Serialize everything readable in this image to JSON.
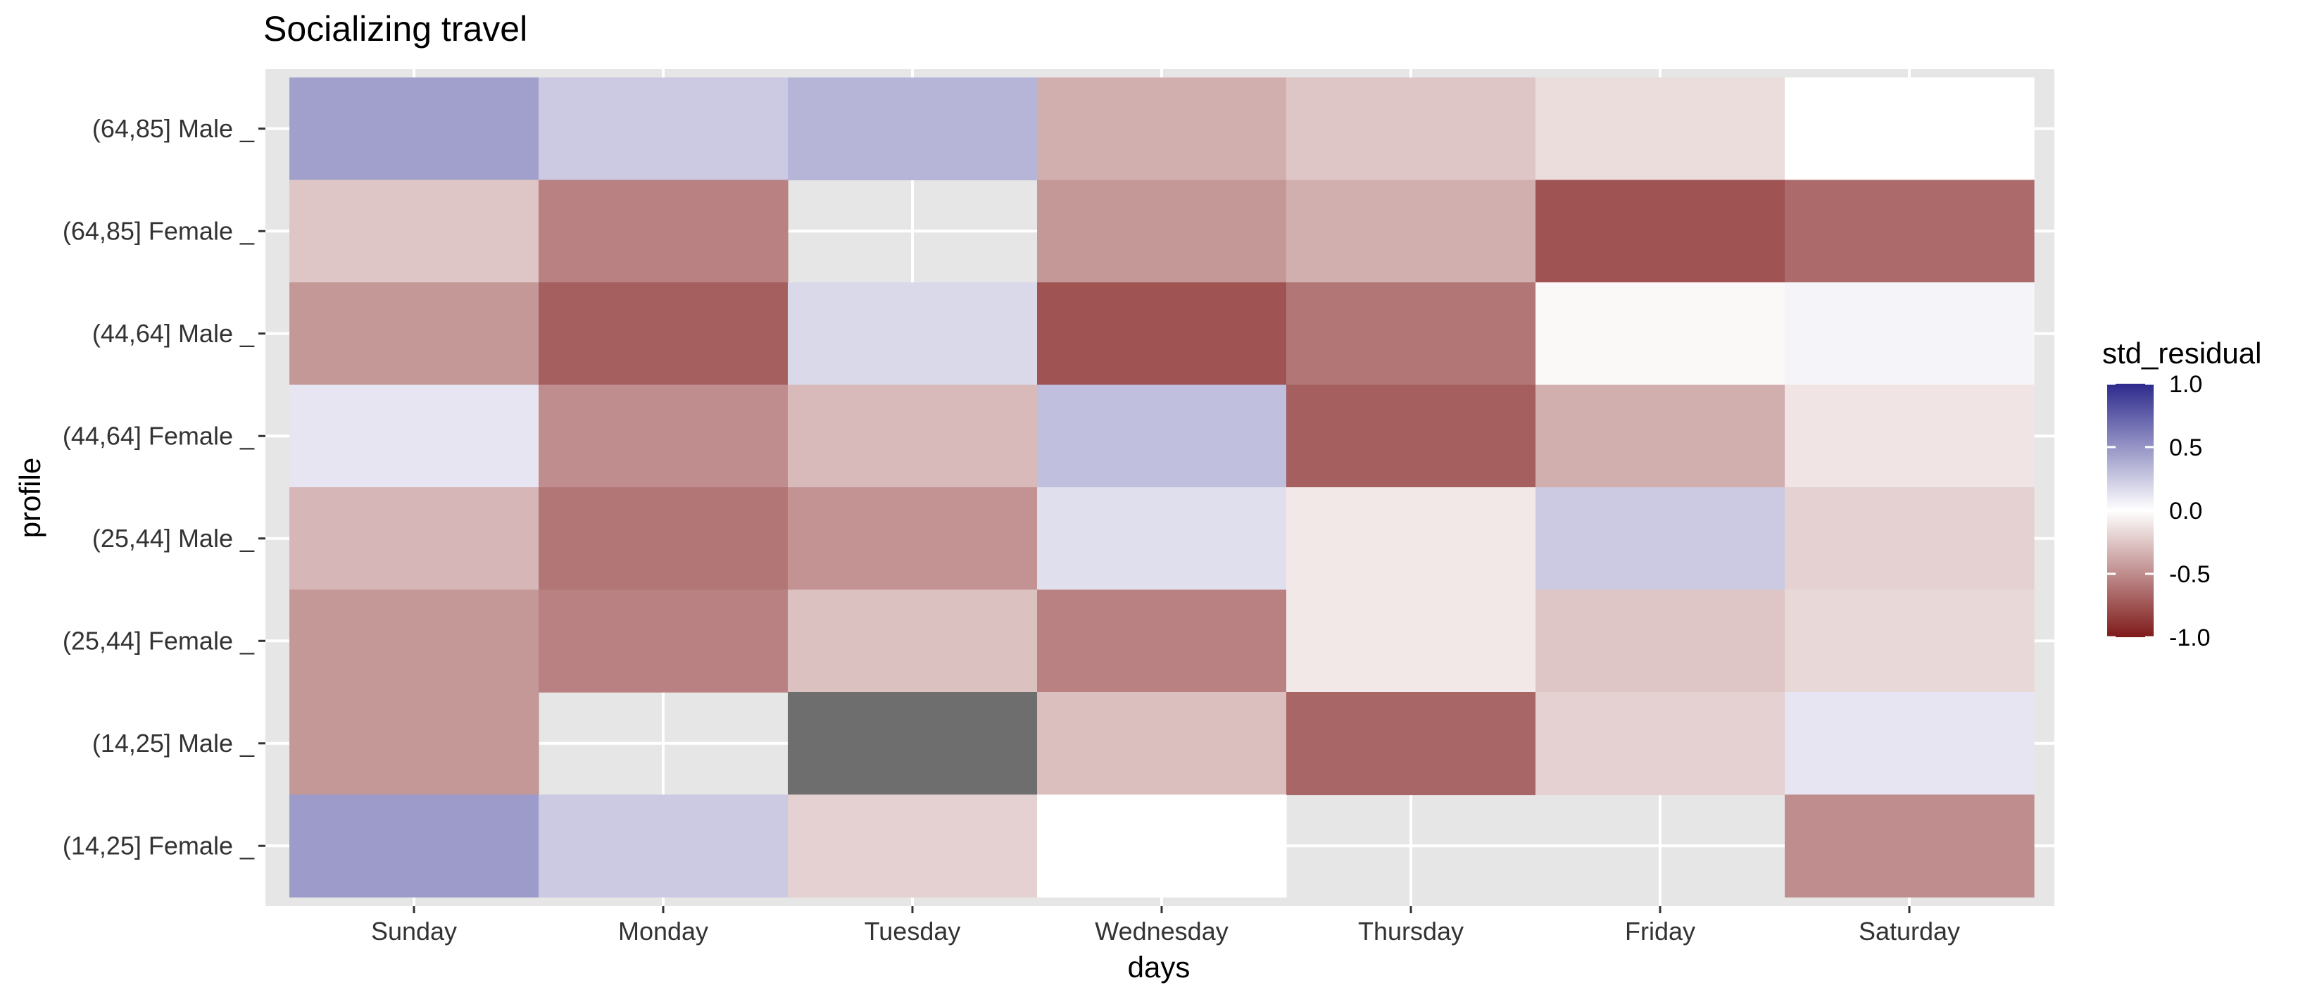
{
  "chart_data": {
    "type": "heatmap",
    "title": "Socializing travel",
    "xlabel": "days",
    "ylabel": "profile",
    "x_categories": [
      "Sunday",
      "Monday",
      "Tuesday",
      "Wednesday",
      "Thursday",
      "Friday",
      "Saturday"
    ],
    "y_categories": [
      "(64,85] Male _",
      "(64,85] Female _",
      "(44,64] Male _",
      "(44,64] Female _",
      "(25,44] Male _",
      "(25,44] Female _",
      "(14,25] Male _",
      "(14,25] Female _"
    ],
    "values": [
      [
        0.45,
        0.25,
        0.35,
        -0.35,
        -0.25,
        -0.15,
        0.0
      ],
      [
        -0.25,
        -0.55,
        null,
        -0.45,
        -0.35,
        -0.75,
        -0.65
      ],
      [
        -0.45,
        -0.7,
        0.18,
        -0.75,
        -0.6,
        -0.03,
        0.05
      ],
      [
        0.12,
        -0.5,
        -0.3,
        0.3,
        -0.7,
        -0.35,
        -0.12
      ],
      [
        -0.32,
        -0.6,
        -0.47,
        0.15,
        -0.1,
        0.25,
        -0.2
      ],
      [
        -0.45,
        -0.55,
        -0.27,
        -0.55,
        -0.1,
        -0.25,
        -0.17
      ],
      [
        -0.45,
        null,
        "NA",
        -0.28,
        -0.67,
        -0.2,
        0.12
      ],
      [
        0.47,
        0.25,
        -0.2,
        0.0,
        null,
        null,
        -0.5
      ]
    ],
    "na_color": "#6E6E6E",
    "legend": {
      "title": "std_residual",
      "ticks": [
        "1.0",
        "0.5",
        "0.0",
        "-0.5",
        "-1.0"
      ],
      "tick_values": [
        1.0,
        0.5,
        0.0,
        -0.5,
        -1.0
      ],
      "range": [
        -1.0,
        1.0
      ],
      "low_color": "#7F1A1A",
      "mid_color": "#FFFFFF",
      "high_color": "#2D2A8C",
      "placement": "right"
    },
    "grid": true,
    "panel_background": "#E6E6E6"
  }
}
